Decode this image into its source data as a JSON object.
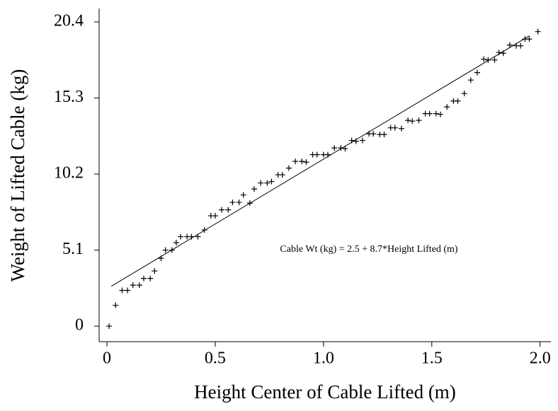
{
  "chart_data": {
    "type": "scatter",
    "xlabel": "Height Center of Cable Lifted (m)",
    "ylabel": "Weight of Lifted Cable (kg)",
    "annotation": "Cable Wt (kg) = 2.5 + 8.7*Height Lifted (m)",
    "color": "#000000",
    "x": [
      0.01,
      0.04,
      0.07,
      0.095,
      0.12,
      0.15,
      0.17,
      0.2,
      0.22,
      0.25,
      0.27,
      0.3,
      0.32,
      0.34,
      0.37,
      0.39,
      0.42,
      0.45,
      0.48,
      0.5,
      0.53,
      0.56,
      0.58,
      0.61,
      0.63,
      0.66,
      0.68,
      0.71,
      0.74,
      0.76,
      0.79,
      0.81,
      0.84,
      0.87,
      0.9,
      0.92,
      0.95,
      0.97,
      1.0,
      1.02,
      1.05,
      1.08,
      1.1,
      1.13,
      1.15,
      1.18,
      1.21,
      1.23,
      1.26,
      1.28,
      1.31,
      1.33,
      1.36,
      1.39,
      1.41,
      1.44,
      1.47,
      1.49,
      1.52,
      1.54,
      1.57,
      1.6,
      1.62,
      1.65,
      1.68,
      1.71,
      1.74,
      1.76,
      1.79,
      1.81,
      1.83,
      1.86,
      1.89,
      1.91,
      1.93,
      1.95,
      1.99
    ],
    "values": [
      0,
      1.4,
      2.4,
      2.4,
      2.75,
      2.75,
      3.2,
      3.2,
      3.7,
      4.55,
      5.1,
      5.1,
      5.6,
      6.0,
      6.0,
      6.0,
      6.0,
      6.45,
      7.4,
      7.4,
      7.8,
      7.8,
      8.3,
      8.3,
      8.8,
      8.25,
      9.2,
      9.6,
      9.6,
      9.7,
      10.15,
      10.15,
      10.6,
      11.05,
      11.05,
      11.0,
      11.5,
      11.5,
      11.5,
      11.5,
      11.95,
      11.95,
      11.9,
      12.45,
      12.4,
      12.45,
      12.9,
      12.9,
      12.85,
      12.85,
      13.3,
      13.3,
      13.25,
      13.8,
      13.75,
      13.8,
      14.25,
      14.25,
      14.25,
      14.2,
      14.7,
      15.1,
      15.1,
      15.6,
      16.5,
      17.0,
      17.9,
      17.85,
      17.85,
      18.35,
      18.3,
      18.85,
      18.8,
      18.8,
      19.25,
      19.25,
      19.75
    ],
    "fit": {
      "x": [
        0.02,
        1.95
      ],
      "y": [
        2.674,
        19.465
      ]
    },
    "xlim": [
      -0.036,
      2.05
    ],
    "ylim": [
      -1.04,
      21.3
    ],
    "xticks": [
      {
        "value": 0,
        "label": "0"
      },
      0.5,
      {
        "value": 1.0,
        "label": "1.0"
      },
      1.5,
      {
        "value": 2.0,
        "label": "2.0"
      }
    ],
    "yticks": [
      0,
      5.1,
      10.2,
      15.3,
      20.4
    ]
  }
}
